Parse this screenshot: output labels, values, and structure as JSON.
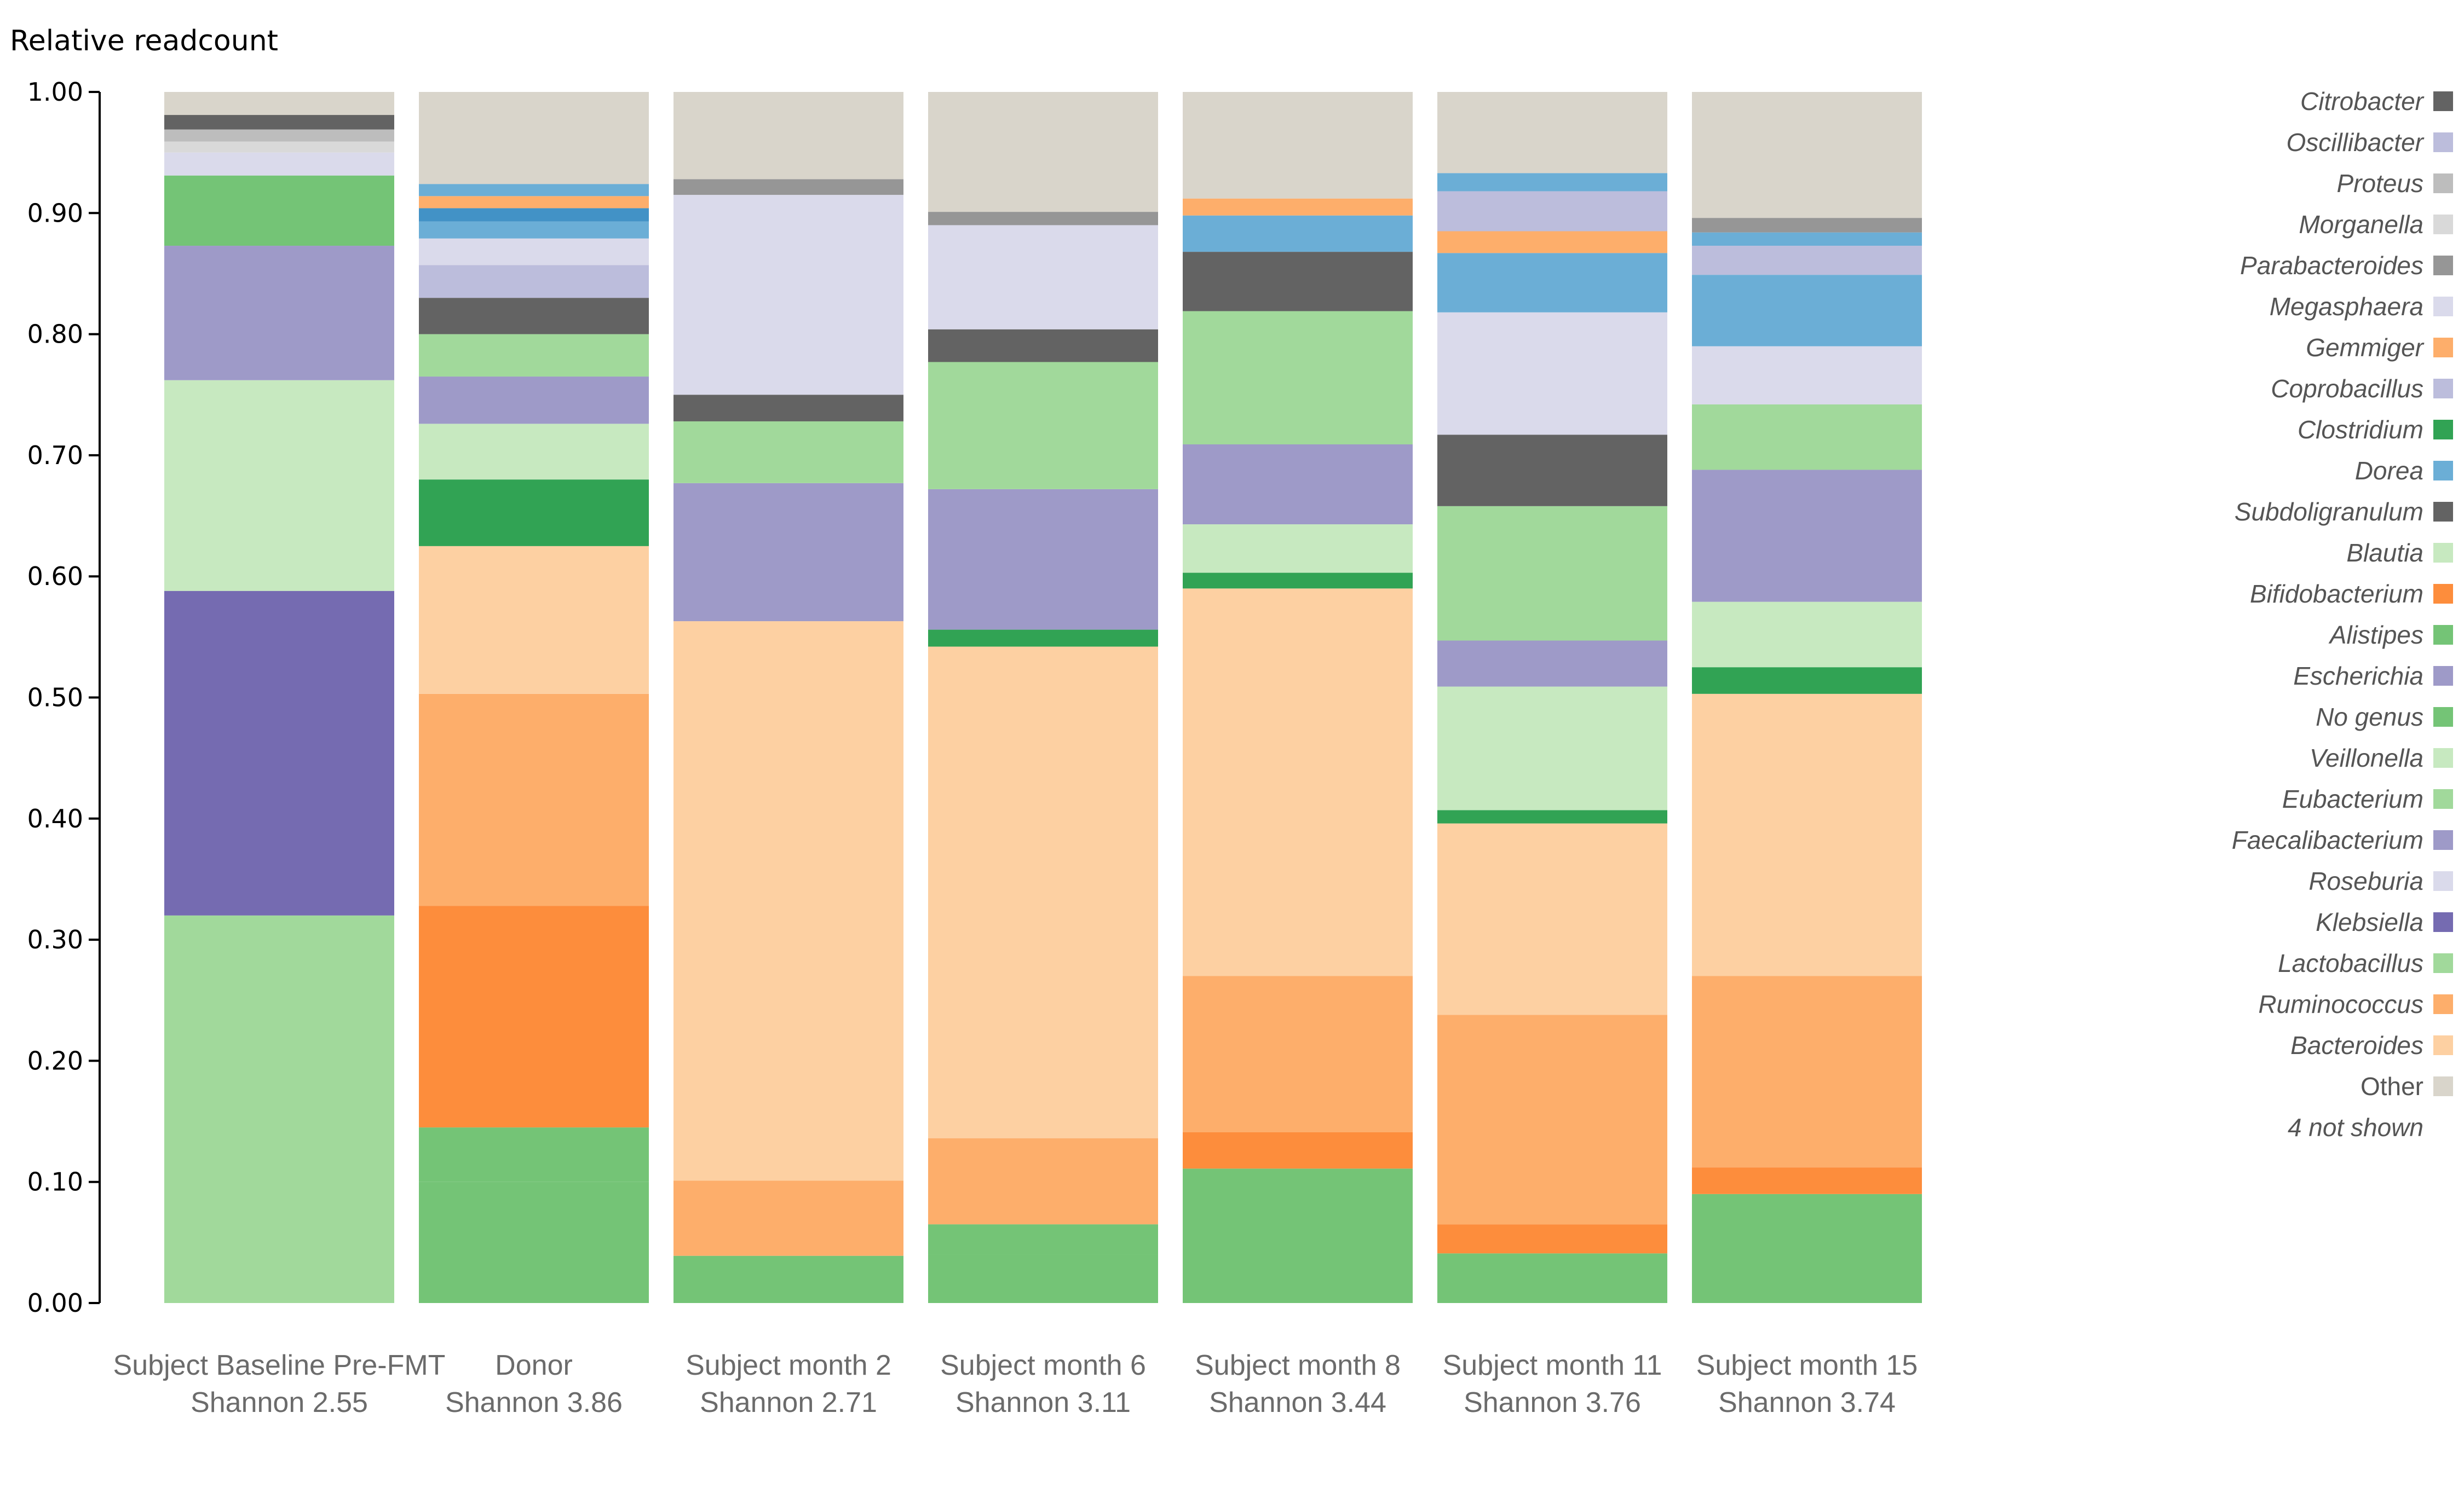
{
  "chart_data": {
    "type": "bar",
    "stacked": true,
    "ylabel": "Relative readcount",
    "ylim": [
      0,
      1
    ],
    "yticks": [
      "0.00",
      "0.10",
      "0.20",
      "0.30",
      "0.40",
      "0.50",
      "0.60",
      "0.70",
      "0.80",
      "0.90",
      "1.00"
    ],
    "categories": [
      {
        "label": "Subject Baseline Pre-FMT",
        "shannon": "Shannon 2.55"
      },
      {
        "label": "Donor",
        "shannon": "Shannon 3.86"
      },
      {
        "label": "Subject month 2",
        "shannon": "Shannon 2.71"
      },
      {
        "label": "Subject month 6",
        "shannon": "Shannon 3.11"
      },
      {
        "label": "Subject month 8",
        "shannon": "Shannon 3.44"
      },
      {
        "label": "Subject month 11",
        "shannon": "Shannon 3.76"
      },
      {
        "label": "Subject month 15",
        "shannon": "Shannon 3.74"
      }
    ],
    "legend": [
      {
        "name": "Citrobacter",
        "color": "#636363"
      },
      {
        "name": "Oscillibacter",
        "color": "#bcbddc"
      },
      {
        "name": "Proteus",
        "color": "#bdbdbd"
      },
      {
        "name": "Morganella",
        "color": "#d9d9d9"
      },
      {
        "name": "Parabacteroides",
        "color": "#969696"
      },
      {
        "name": "Megasphaera",
        "color": "#dadaeb"
      },
      {
        "name": "Gemmiger",
        "color": "#fdae6b"
      },
      {
        "name": "Coprobacillus",
        "color": "#bcbddc"
      },
      {
        "name": "Clostridium",
        "color": "#31a354"
      },
      {
        "name": "Dorea",
        "color": "#6baed6"
      },
      {
        "name": "Subdoligranulum",
        "color": "#636363"
      },
      {
        "name": "Blautia",
        "color": "#c7e9c0"
      },
      {
        "name": "Bifidobacterium",
        "color": "#fd8d3c"
      },
      {
        "name": "Alistipes",
        "color": "#74c476"
      },
      {
        "name": "Escherichia",
        "color": "#9e9ac8"
      },
      {
        "name": "No genus",
        "color": "#74c476"
      },
      {
        "name": "Veillonella",
        "color": "#c7e9c0"
      },
      {
        "name": "Eubacterium",
        "color": "#a1d99b"
      },
      {
        "name": "Faecalibacterium",
        "color": "#9e9ac8"
      },
      {
        "name": "Roseburia",
        "color": "#dadaeb"
      },
      {
        "name": "Klebsiella",
        "color": "#756bb1"
      },
      {
        "name": "Lactobacillus",
        "color": "#a1d99b"
      },
      {
        "name": "Ruminococcus",
        "color": "#fdae6b"
      },
      {
        "name": "Bacteroides",
        "color": "#fdd0a2"
      },
      {
        "name": "Other",
        "color": "#d9d5cb",
        "plain": true
      },
      {
        "name": "4 not shown",
        "color": null
      }
    ],
    "stacks": [
      [
        {
          "v": 0.32,
          "color": "#a1d99b"
        },
        {
          "v": 0.268,
          "color": "#756bb1"
        },
        {
          "v": 0.174,
          "color": "#c7e9c0"
        },
        {
          "v": 0.111,
          "color": "#9e9ac8"
        },
        {
          "v": 0.058,
          "color": "#74c476"
        },
        {
          "v": 0.019,
          "color": "#dadaeb"
        },
        {
          "v": 0.009,
          "color": "#d9d9d9"
        },
        {
          "v": 0.01,
          "color": "#bdbdbd"
        },
        {
          "v": 0.012,
          "color": "#636363"
        },
        {
          "v": 0.019,
          "color": "#d9d5cb"
        }
      ],
      [
        {
          "v": 0.1,
          "color": "#74c476"
        },
        {
          "v": 0.045,
          "color": "#74c476"
        },
        {
          "v": 0.183,
          "color": "#fd8d3c"
        },
        {
          "v": 0.175,
          "color": "#fdae6b"
        },
        {
          "v": 0.122,
          "color": "#fdd0a2"
        },
        {
          "v": 0.055,
          "color": "#31a354"
        },
        {
          "v": 0.046,
          "color": "#c7e9c0"
        },
        {
          "v": 0.039,
          "color": "#9e9ac8"
        },
        {
          "v": 0.035,
          "color": "#a1d99b"
        },
        {
          "v": 0.03,
          "color": "#636363"
        },
        {
          "v": 0.027,
          "color": "#bcbddc"
        },
        {
          "v": 0.022,
          "color": "#dadaeb"
        },
        {
          "v": 0.014,
          "color": "#6baed6"
        },
        {
          "v": 0.011,
          "color": "#4292c6"
        },
        {
          "v": 0.01,
          "color": "#fdae6b"
        },
        {
          "v": 0.01,
          "color": "#6baed6"
        },
        {
          "v": 0.076,
          "color": "#d9d5cb"
        }
      ],
      [
        {
          "v": 0.039,
          "color": "#74c476"
        },
        {
          "v": 0.062,
          "color": "#fdae6b"
        },
        {
          "v": 0.462,
          "color": "#fdd0a2"
        },
        {
          "v": 0.114,
          "color": "#9e9ac8"
        },
        {
          "v": 0.051,
          "color": "#a1d99b"
        },
        {
          "v": 0.022,
          "color": "#636363"
        },
        {
          "v": 0.165,
          "color": "#dadaeb"
        },
        {
          "v": 0.013,
          "color": "#969696"
        },
        {
          "v": 0.072,
          "color": "#d9d5cb"
        }
      ],
      [
        {
          "v": 0.04,
          "color": "#74c476"
        },
        {
          "v": 0.025,
          "color": "#74c476"
        },
        {
          "v": 0.071,
          "color": "#fdae6b"
        },
        {
          "v": 0.406,
          "color": "#fdd0a2"
        },
        {
          "v": 0.014,
          "color": "#31a354"
        },
        {
          "v": 0.116,
          "color": "#9e9ac8"
        },
        {
          "v": 0.105,
          "color": "#a1d99b"
        },
        {
          "v": 0.027,
          "color": "#636363"
        },
        {
          "v": 0.086,
          "color": "#dadaeb"
        },
        {
          "v": 0.011,
          "color": "#969696"
        },
        {
          "v": 0.099,
          "color": "#d9d5cb"
        }
      ],
      [
        {
          "v": 0.111,
          "color": "#74c476"
        },
        {
          "v": 0.03,
          "color": "#fd8d3c"
        },
        {
          "v": 0.129,
          "color": "#fdae6b"
        },
        {
          "v": 0.32,
          "color": "#fdd0a2"
        },
        {
          "v": 0.013,
          "color": "#31a354"
        },
        {
          "v": 0.04,
          "color": "#c7e9c0"
        },
        {
          "v": 0.066,
          "color": "#9e9ac8"
        },
        {
          "v": 0.11,
          "color": "#a1d99b"
        },
        {
          "v": 0.049,
          "color": "#636363"
        },
        {
          "v": 0.03,
          "color": "#6baed6"
        },
        {
          "v": 0.014,
          "color": "#fdae6b"
        },
        {
          "v": 0.088,
          "color": "#d9d5cb"
        }
      ],
      [
        {
          "v": 0.041,
          "color": "#74c476"
        },
        {
          "v": 0.024,
          "color": "#fd8d3c"
        },
        {
          "v": 0.173,
          "color": "#fdae6b"
        },
        {
          "v": 0.158,
          "color": "#fdd0a2"
        },
        {
          "v": 0.011,
          "color": "#31a354"
        },
        {
          "v": 0.102,
          "color": "#c7e9c0"
        },
        {
          "v": 0.038,
          "color": "#9e9ac8"
        },
        {
          "v": 0.111,
          "color": "#a1d99b"
        },
        {
          "v": 0.059,
          "color": "#636363"
        },
        {
          "v": 0.101,
          "color": "#dadaeb"
        },
        {
          "v": 0.049,
          "color": "#6baed6"
        },
        {
          "v": 0.018,
          "color": "#fdae6b"
        },
        {
          "v": 0.033,
          "color": "#bcbddc"
        },
        {
          "v": 0.015,
          "color": "#6baed6"
        },
        {
          "v": 0.067,
          "color": "#d9d5cb"
        }
      ],
      [
        {
          "v": 0.09,
          "color": "#74c476"
        },
        {
          "v": 0.022,
          "color": "#fd8d3c"
        },
        {
          "v": 0.158,
          "color": "#fdae6b"
        },
        {
          "v": 0.233,
          "color": "#fdd0a2"
        },
        {
          "v": 0.022,
          "color": "#31a354"
        },
        {
          "v": 0.054,
          "color": "#c7e9c0"
        },
        {
          "v": 0.109,
          "color": "#9e9ac8"
        },
        {
          "v": 0.054,
          "color": "#a1d99b"
        },
        {
          "v": 0.048,
          "color": "#dadaeb"
        },
        {
          "v": 0.059,
          "color": "#6baed6"
        },
        {
          "v": 0.024,
          "color": "#bcbddc"
        },
        {
          "v": 0.011,
          "color": "#6baed6"
        },
        {
          "v": 0.012,
          "color": "#969696"
        },
        {
          "v": 0.104,
          "color": "#d9d5cb"
        }
      ]
    ]
  }
}
